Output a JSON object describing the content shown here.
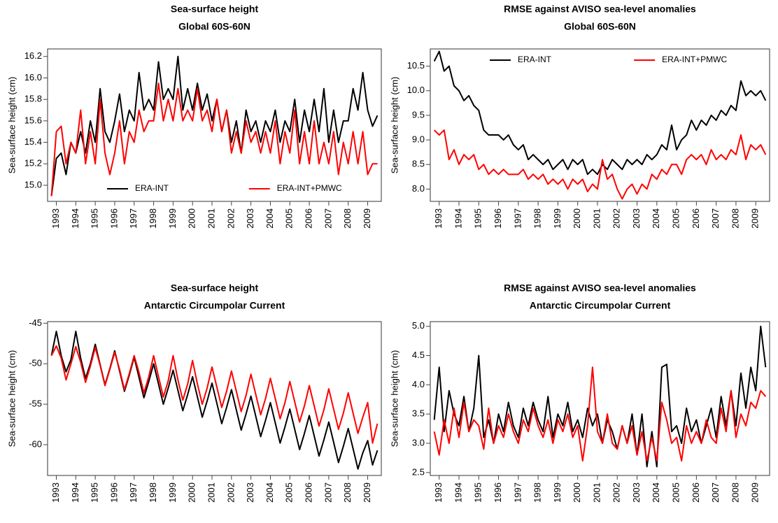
{
  "chart_data": [
    {
      "type": "line",
      "title": "Sea-surface height",
      "subtitle": "Global 60S-60N",
      "y_label": "Sea-surface height (cm)",
      "legend": "bottom",
      "x": [
        1992.75,
        1993,
        1993.25,
        1993.5,
        1993.75,
        1994,
        1994.25,
        1994.5,
        1994.75,
        1995,
        1995.25,
        1995.5,
        1995.75,
        1996,
        1996.25,
        1996.5,
        1996.75,
        1997,
        1997.25,
        1997.5,
        1997.75,
        1998,
        1998.25,
        1998.5,
        1998.75,
        1999,
        1999.25,
        1999.5,
        1999.75,
        2000,
        2000.25,
        2000.5,
        2000.75,
        2001,
        2001.25,
        2001.5,
        2001.75,
        2002,
        2002.25,
        2002.5,
        2002.75,
        2003,
        2003.25,
        2003.5,
        2003.75,
        2004,
        2004.25,
        2004.5,
        2004.75,
        2005,
        2005.25,
        2005.5,
        2005.75,
        2006,
        2006.25,
        2006.5,
        2006.75,
        2007,
        2007.25,
        2007.5,
        2007.75,
        2008,
        2008.25,
        2008.5,
        2008.75,
        2009,
        2009.25,
        2009.5
      ],
      "xlim": [
        1992.55,
        2009.7
      ],
      "xticks": [
        1993,
        1994,
        1995,
        1996,
        1997,
        1998,
        1999,
        2000,
        2001,
        2002,
        2003,
        2004,
        2005,
        2006,
        2007,
        2008,
        2009
      ],
      "ylim": [
        14.85,
        16.27
      ],
      "yticks": [
        {
          "value": 15,
          "label": "15.0"
        },
        15.2,
        15.4,
        15.6,
        15.8,
        {
          "value": 16,
          "label": "16.0"
        },
        16.2
      ],
      "series": [
        {
          "name": "ERA-INT",
          "color": "#000000",
          "values": [
            14.9,
            15.25,
            15.3,
            15.1,
            15.4,
            15.3,
            15.5,
            15.3,
            15.6,
            15.4,
            15.9,
            15.5,
            15.4,
            15.6,
            15.85,
            15.5,
            15.7,
            15.6,
            16.05,
            15.7,
            15.8,
            15.7,
            16.15,
            15.8,
            15.9,
            15.8,
            16.2,
            15.7,
            15.9,
            15.7,
            15.95,
            15.7,
            15.85,
            15.6,
            15.8,
            15.5,
            15.7,
            15.4,
            15.6,
            15.3,
            15.7,
            15.5,
            15.6,
            15.4,
            15.6,
            15.5,
            15.7,
            15.4,
            15.6,
            15.5,
            15.8,
            15.4,
            15.7,
            15.5,
            15.8,
            15.5,
            15.9,
            15.4,
            15.7,
            15.4,
            15.6,
            15.6,
            15.9,
            15.7,
            16.05,
            15.7,
            15.55,
            15.65
          ]
        },
        {
          "name": "ERA-INT+PMWC",
          "color": "#ff0000",
          "values": [
            14.9,
            15.5,
            15.55,
            15.2,
            15.4,
            15.3,
            15.7,
            15.2,
            15.5,
            15.2,
            15.8,
            15.3,
            15.1,
            15.3,
            15.6,
            15.2,
            15.5,
            15.4,
            15.7,
            15.5,
            15.6,
            15.6,
            15.95,
            15.6,
            15.8,
            15.6,
            15.9,
            15.6,
            15.7,
            15.6,
            15.9,
            15.6,
            15.7,
            15.5,
            15.8,
            15.5,
            15.7,
            15.3,
            15.5,
            15.3,
            15.6,
            15.4,
            15.5,
            15.3,
            15.5,
            15.3,
            15.6,
            15.2,
            15.5,
            15.3,
            15.7,
            15.2,
            15.5,
            15.2,
            15.6,
            15.2,
            15.4,
            15.2,
            15.5,
            15.1,
            15.4,
            15.2,
            15.5,
            15.2,
            15.5,
            15.1,
            15.2,
            15.2
          ]
        }
      ]
    },
    {
      "type": "line",
      "title": "RMSE against AVISO sea-level anomalies",
      "subtitle": "Global 60S-60N",
      "y_label": "Sea-surface height (cm)",
      "legend": "top",
      "x": [
        1992.75,
        1993,
        1993.25,
        1993.5,
        1993.75,
        1994,
        1994.25,
        1994.5,
        1994.75,
        1995,
        1995.25,
        1995.5,
        1995.75,
        1996,
        1996.25,
        1996.5,
        1996.75,
        1997,
        1997.25,
        1997.5,
        1997.75,
        1998,
        1998.25,
        1998.5,
        1998.75,
        1999,
        1999.25,
        1999.5,
        1999.75,
        2000,
        2000.25,
        2000.5,
        2000.75,
        2001,
        2001.25,
        2001.5,
        2001.75,
        2002,
        2002.25,
        2002.5,
        2002.75,
        2003,
        2003.25,
        2003.5,
        2003.75,
        2004,
        2004.25,
        2004.5,
        2004.75,
        2005,
        2005.25,
        2005.5,
        2005.75,
        2006,
        2006.25,
        2006.5,
        2006.75,
        2007,
        2007.25,
        2007.5,
        2007.75,
        2008,
        2008.25,
        2008.5,
        2008.75,
        2009,
        2009.25,
        2009.5
      ],
      "xlim": [
        1992.55,
        2009.7
      ],
      "xticks": [
        1993,
        1994,
        1995,
        1996,
        1997,
        1998,
        1999,
        2000,
        2001,
        2002,
        2003,
        2004,
        2005,
        2006,
        2007,
        2008,
        2009
      ],
      "ylim": [
        7.75,
        10.85
      ],
      "yticks": [
        {
          "value": 8,
          "label": "8.0"
        },
        8.5,
        {
          "value": 9,
          "label": "9.0"
        },
        9.5,
        {
          "value": 10,
          "label": "10.0"
        },
        10.5
      ],
      "series": [
        {
          "name": "ERA-INT",
          "color": "#000000",
          "values": [
            10.6,
            10.8,
            10.4,
            10.5,
            10.1,
            10.0,
            9.8,
            9.9,
            9.7,
            9.6,
            9.2,
            9.1,
            9.1,
            9.1,
            9.0,
            9.1,
            8.9,
            8.8,
            8.9,
            8.6,
            8.7,
            8.6,
            8.5,
            8.6,
            8.4,
            8.5,
            8.6,
            8.4,
            8.6,
            8.5,
            8.6,
            8.3,
            8.4,
            8.3,
            8.5,
            8.4,
            8.6,
            8.5,
            8.4,
            8.6,
            8.5,
            8.6,
            8.5,
            8.7,
            8.6,
            8.7,
            8.9,
            8.8,
            9.3,
            8.8,
            9.0,
            9.1,
            9.4,
            9.2,
            9.4,
            9.3,
            9.5,
            9.4,
            9.6,
            9.5,
            9.7,
            9.6,
            10.2,
            9.9,
            10.0,
            9.9,
            10.0,
            9.8
          ]
        },
        {
          "name": "ERA-INT+PMWC",
          "color": "#ff0000",
          "values": [
            9.2,
            9.1,
            9.2,
            8.6,
            8.8,
            8.5,
            8.7,
            8.6,
            8.7,
            8.4,
            8.5,
            8.3,
            8.4,
            8.3,
            8.4,
            8.3,
            8.3,
            8.3,
            8.4,
            8.2,
            8.3,
            8.2,
            8.3,
            8.1,
            8.2,
            8.1,
            8.2,
            8.0,
            8.2,
            8.1,
            8.2,
            7.95,
            8.1,
            8.0,
            8.6,
            8.2,
            8.3,
            8.0,
            7.8,
            8.0,
            8.1,
            7.9,
            8.1,
            8.0,
            8.3,
            8.2,
            8.4,
            8.3,
            8.5,
            8.5,
            8.3,
            8.6,
            8.7,
            8.6,
            8.7,
            8.5,
            8.8,
            8.6,
            8.7,
            8.6,
            8.8,
            8.7,
            9.1,
            8.6,
            8.9,
            8.8,
            8.9,
            8.7
          ]
        }
      ]
    },
    {
      "type": "line",
      "title": "Sea-surface height",
      "subtitle": "Antarctic Circumpolar Current",
      "y_label": "Sea-surface height (cm)",
      "x": [
        1992.75,
        1993,
        1993.25,
        1993.5,
        1993.75,
        1994,
        1994.25,
        1994.5,
        1994.75,
        1995,
        1995.25,
        1995.5,
        1995.75,
        1996,
        1996.25,
        1996.5,
        1996.75,
        1997,
        1997.25,
        1997.5,
        1997.75,
        1998,
        1998.25,
        1998.5,
        1998.75,
        1999,
        1999.25,
        1999.5,
        1999.75,
        2000,
        2000.25,
        2000.5,
        2000.75,
        2001,
        2001.25,
        2001.5,
        2001.75,
        2002,
        2002.25,
        2002.5,
        2002.75,
        2003,
        2003.25,
        2003.5,
        2003.75,
        2004,
        2004.25,
        2004.5,
        2004.75,
        2005,
        2005.25,
        2005.5,
        2005.75,
        2006,
        2006.25,
        2006.5,
        2006.75,
        2007,
        2007.25,
        2007.5,
        2007.75,
        2008,
        2008.25,
        2008.5,
        2008.75,
        2009,
        2009.25,
        2009.5
      ],
      "xlim": [
        1992.55,
        2009.7
      ],
      "xticks": [
        1993,
        1994,
        1995,
        1996,
        1997,
        1998,
        1999,
        2000,
        2001,
        2002,
        2003,
        2004,
        2005,
        2006,
        2007,
        2008,
        2009
      ],
      "ylim": [
        -63.8,
        -44.8
      ],
      "yticks": [
        -60,
        -55,
        -50,
        -45
      ],
      "series": [
        {
          "name": "ERA-INT",
          "color": "#000000",
          "values": [
            -49,
            -46,
            -49,
            -51,
            -49.5,
            -46,
            -49.3,
            -51.8,
            -50,
            -47.6,
            -50.1,
            -52.6,
            -50.6,
            -48.4,
            -50.9,
            -53.4,
            -51.4,
            -49.2,
            -51.7,
            -54.2,
            -52.2,
            -50,
            -52.5,
            -55,
            -53,
            -50.8,
            -53.3,
            -55.8,
            -53.8,
            -51.6,
            -54.1,
            -56.6,
            -54.6,
            -52.4,
            -54.9,
            -57.4,
            -55.4,
            -53.2,
            -55.7,
            -58.2,
            -56.2,
            -54,
            -56.5,
            -59,
            -57,
            -54.8,
            -57.3,
            -59.8,
            -57.8,
            -55.6,
            -58.1,
            -60.6,
            -58.6,
            -56.4,
            -58.9,
            -61.4,
            -59.4,
            -57.2,
            -59.7,
            -62.2,
            -60.2,
            -58,
            -60.5,
            -63,
            -61,
            -59.5,
            -62.5,
            -60.7
          ]
        },
        {
          "name": "ERA-INT+PMWC",
          "color": "#ff0000",
          "values": [
            -49,
            -47.8,
            -49.3,
            -52,
            -50,
            -47.9,
            -49.8,
            -52.3,
            -50.3,
            -48,
            -50.2,
            -52.7,
            -50.7,
            -48.6,
            -50.7,
            -53.2,
            -51.2,
            -49,
            -51.1,
            -53.6,
            -51.6,
            -49,
            -51.6,
            -54.1,
            -52.1,
            -49,
            -52,
            -54.5,
            -52.5,
            -49.6,
            -52.5,
            -55,
            -53,
            -50.4,
            -52.9,
            -55.4,
            -53.4,
            -50.9,
            -53.4,
            -55.9,
            -53.9,
            -51.3,
            -53.8,
            -56.3,
            -54.3,
            -51.8,
            -54.3,
            -56.8,
            -54.8,
            -52.2,
            -54.7,
            -57.2,
            -55.2,
            -52.7,
            -55.2,
            -57.7,
            -55.7,
            -53.1,
            -55.6,
            -58.1,
            -56.1,
            -53.6,
            -56.1,
            -58.6,
            -56.6,
            -54.8,
            -59.8,
            -57.4
          ]
        }
      ]
    },
    {
      "type": "line",
      "title": "RMSE against AVISO sea-level anomalies",
      "subtitle": "Antarctic Circumpolar Current",
      "y_label": "Sea-surface height (cm)",
      "x": [
        1992.75,
        1993,
        1993.25,
        1993.5,
        1993.75,
        1994,
        1994.25,
        1994.5,
        1994.75,
        1995,
        1995.25,
        1995.5,
        1995.75,
        1996,
        1996.25,
        1996.5,
        1996.75,
        1997,
        1997.25,
        1997.5,
        1997.75,
        1998,
        1998.25,
        1998.5,
        1998.75,
        1999,
        1999.25,
        1999.5,
        1999.75,
        2000,
        2000.25,
        2000.5,
        2000.75,
        2001,
        2001.25,
        2001.5,
        2001.75,
        2002,
        2002.25,
        2002.5,
        2002.75,
        2003,
        2003.25,
        2003.5,
        2003.75,
        2004,
        2004.25,
        2004.5,
        2004.75,
        2005,
        2005.25,
        2005.5,
        2005.75,
        2006,
        2006.25,
        2006.5,
        2006.75,
        2007,
        2007.25,
        2007.5,
        2007.75,
        2008,
        2008.25,
        2008.5,
        2008.75,
        2009,
        2009.25,
        2009.5
      ],
      "xlim": [
        1992.55,
        2009.7
      ],
      "xticks": [
        1993,
        1994,
        1995,
        1996,
        1997,
        1998,
        1999,
        2000,
        2001,
        2002,
        2003,
        2004,
        2005,
        2006,
        2007,
        2008,
        2009
      ],
      "ylim": [
        2.45,
        5.08
      ],
      "yticks": [
        2.5,
        {
          "value": 3,
          "label": "3.0"
        },
        3.5,
        {
          "value": 4,
          "label": "4.0"
        },
        4.5,
        {
          "value": 5,
          "label": "5.0"
        }
      ],
      "series": [
        {
          "name": "ERA-INT",
          "color": "#000000",
          "values": [
            3.4,
            4.3,
            3.2,
            3.9,
            3.5,
            3.3,
            3.8,
            3.2,
            3.6,
            4.5,
            3.1,
            3.4,
            3.0,
            3.5,
            3.2,
            3.7,
            3.3,
            3.1,
            3.6,
            3.3,
            3.7,
            3.4,
            3.2,
            3.8,
            3.1,
            3.5,
            3.3,
            3.7,
            3.2,
            3.4,
            3.1,
            3.6,
            3.3,
            3.5,
            3.0,
            3.4,
            3.2,
            2.9,
            3.3,
            3.0,
            3.5,
            2.8,
            3.5,
            2.6,
            3.2,
            2.6,
            4.3,
            4.35,
            3.2,
            3.3,
            3.0,
            3.6,
            3.2,
            3.4,
            3.0,
            3.3,
            3.6,
            3.1,
            3.8,
            3.3,
            3.9,
            3.3,
            4.2,
            3.6,
            4.3,
            3.9,
            5.0,
            4.3
          ]
        },
        {
          "name": "ERA-INT+PMWC",
          "color": "#ff0000",
          "values": [
            3.2,
            2.8,
            3.4,
            3.0,
            3.6,
            3.1,
            3.7,
            3.2,
            3.4,
            3.3,
            2.9,
            3.6,
            3.0,
            3.3,
            3.1,
            3.5,
            3.2,
            3.0,
            3.4,
            3.2,
            3.6,
            3.3,
            3.1,
            3.4,
            3.0,
            3.4,
            3.2,
            3.5,
            3.1,
            3.3,
            2.7,
            3.3,
            4.3,
            3.2,
            3.0,
            3.5,
            3.0,
            2.9,
            3.3,
            3.0,
            3.3,
            2.8,
            3.2,
            2.7,
            3.1,
            2.7,
            3.7,
            3.4,
            3.0,
            3.1,
            2.7,
            3.3,
            3.0,
            3.2,
            3.0,
            3.4,
            3.1,
            3.0,
            3.6,
            3.2,
            3.9,
            3.1,
            3.5,
            3.3,
            3.7,
            3.6,
            3.9,
            3.8
          ]
        }
      ]
    }
  ]
}
